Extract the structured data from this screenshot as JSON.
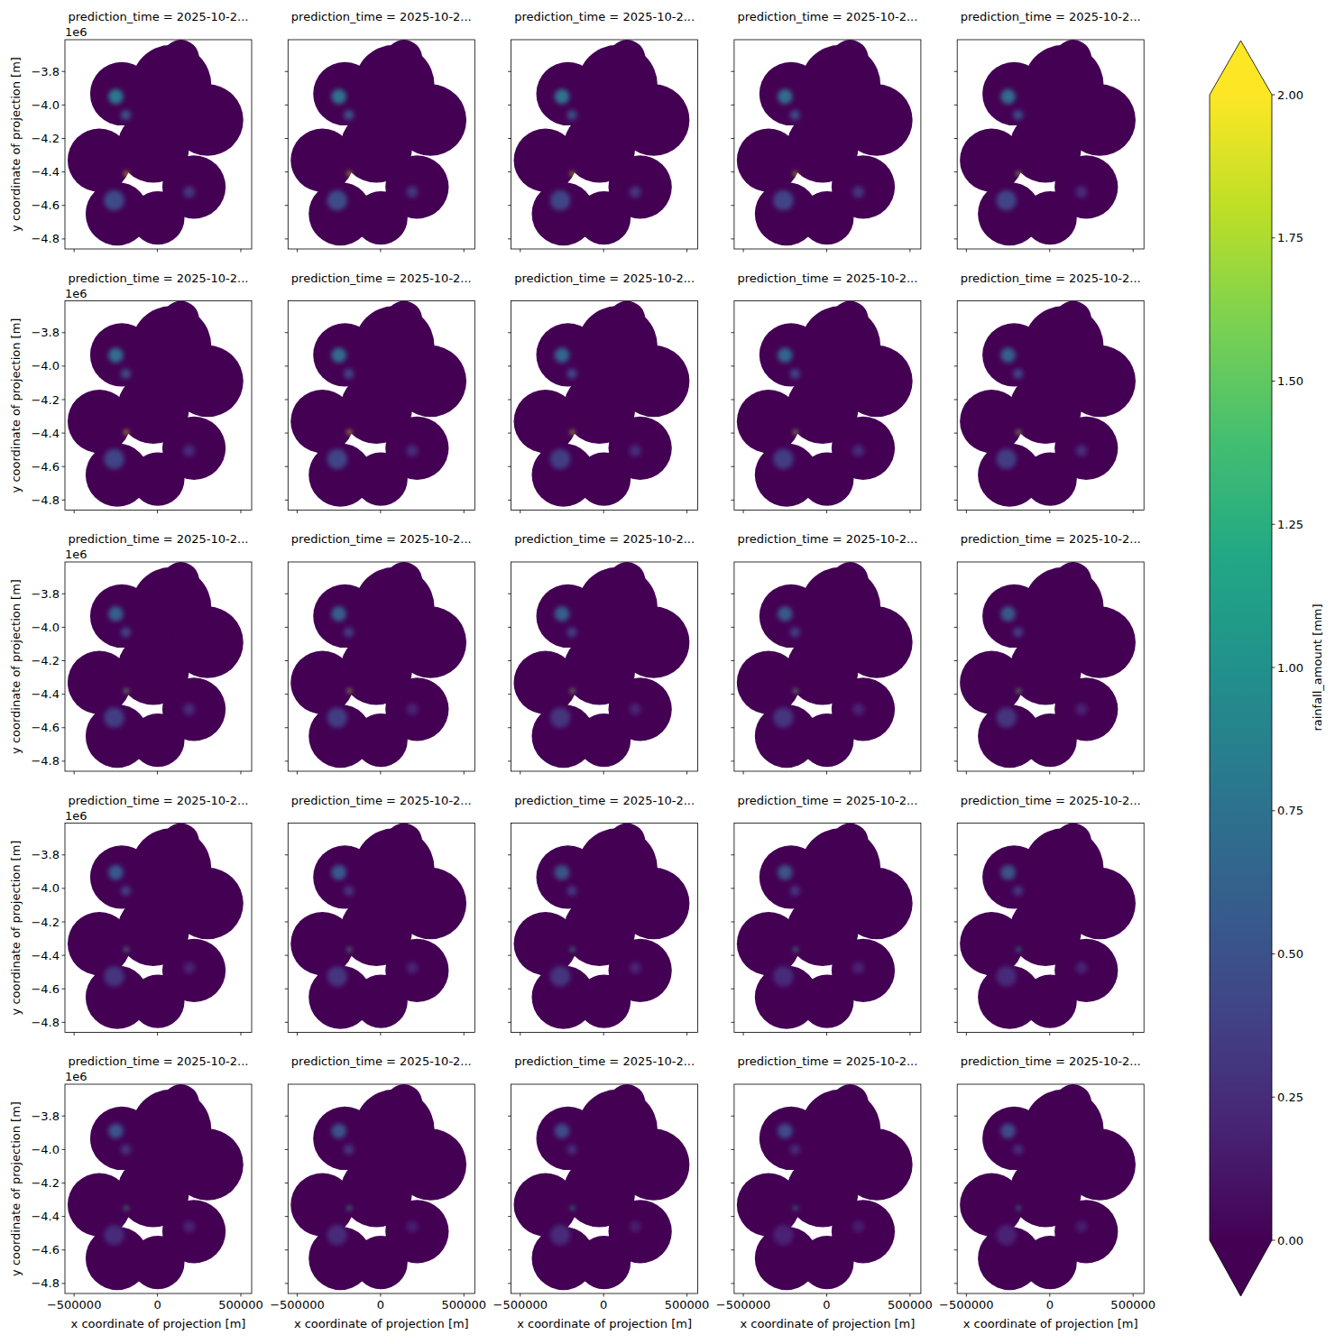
{
  "chart_data": {
    "type": "heatmap",
    "x_label": "x coordinate of projection [m]",
    "y_label": "y coordinate of projection [m]",
    "y_offset_label": "1e6",
    "xlim": [
      -555000,
      565000
    ],
    "ylim": [
      -4860000,
      -3610000
    ],
    "xticks": [
      {
        "value": -500000,
        "label": "−500000"
      },
      0,
      500000
    ],
    "yticks": [
      {
        "value": -4800000,
        "label": "−4.8"
      },
      {
        "value": -4600000,
        "label": "−4.6"
      },
      {
        "value": -4400000,
        "label": "−4.4"
      },
      {
        "value": -4200000,
        "label": "−4.2"
      },
      {
        "value": -4000000,
        "label": "−4.0"
      },
      {
        "value": -3800000,
        "label": "−3.8"
      }
    ],
    "colorbar": {
      "label": "rainfall_amount [mm]",
      "range": [
        0,
        2
      ],
      "ticks": [
        {
          "value": 0,
          "label": "0.00"
        },
        {
          "value": 0.25,
          "label": "0.25"
        },
        {
          "value": 0.5,
          "label": "0.50"
        },
        {
          "value": 0.75,
          "label": "0.75"
        },
        {
          "value": 1,
          "label": "1.00"
        },
        {
          "value": 1.25,
          "label": "1.25"
        },
        {
          "value": 1.5,
          "label": "1.50"
        },
        {
          "value": 1.75,
          "label": "1.75"
        },
        {
          "value": 2,
          "label": "2.00"
        }
      ]
    },
    "coverage": [
      [
        -214000,
        -3933000,
        190000
      ],
      [
        83000,
        -3880000,
        240000
      ],
      [
        300000,
        -4090000,
        215000
      ],
      [
        -349000,
        -4330000,
        190000
      ],
      [
        -25000,
        -4250000,
        215000
      ],
      [
        219000,
        -4490000,
        190000
      ],
      [
        -241000,
        -4650000,
        190000
      ],
      [
        2000,
        -4675000,
        160000
      ],
      [
        140000,
        -3720000,
        110000
      ]
    ],
    "panels": [
      {
        "title": "prediction_time = 2025-10-2...",
        "cells": [
          [
            -250000,
            -3950000,
            45000,
            0.8
          ],
          [
            -190000,
            -4060000,
            30000,
            0.5
          ],
          [
            -187000,
            -4410000,
            12000,
            2.0
          ],
          [
            -260000,
            -4570000,
            60000,
            0.45
          ],
          [
            190000,
            -4520000,
            35000,
            0.3
          ]
        ]
      },
      {
        "title": "prediction_time = 2025-10-2...",
        "cells": [
          [
            -250000,
            -3950000,
            45000,
            0.75
          ],
          [
            -190000,
            -4060000,
            30000,
            0.5
          ],
          [
            -187000,
            -4410000,
            12000,
            1.9
          ],
          [
            -260000,
            -4570000,
            60000,
            0.45
          ],
          [
            190000,
            -4520000,
            35000,
            0.3
          ]
        ]
      },
      {
        "title": "prediction_time = 2025-10-2...",
        "cells": [
          [
            -250000,
            -3950000,
            45000,
            0.75
          ],
          [
            -190000,
            -4060000,
            30000,
            0.45
          ],
          [
            -187000,
            -4410000,
            12000,
            1.8
          ],
          [
            -260000,
            -4570000,
            60000,
            0.4
          ],
          [
            190000,
            -4520000,
            35000,
            0.3
          ]
        ]
      },
      {
        "title": "prediction_time = 2025-10-2...",
        "cells": [
          [
            -250000,
            -3950000,
            45000,
            0.7
          ],
          [
            -190000,
            -4060000,
            30000,
            0.45
          ],
          [
            -187000,
            -4410000,
            12000,
            1.8
          ],
          [
            -260000,
            -4570000,
            60000,
            0.4
          ],
          [
            190000,
            -4520000,
            35000,
            0.3
          ]
        ]
      },
      {
        "title": "prediction_time = 2025-10-2...",
        "cells": [
          [
            -250000,
            -3950000,
            45000,
            0.7
          ],
          [
            -190000,
            -4060000,
            30000,
            0.45
          ],
          [
            -187000,
            -4410000,
            12000,
            1.7
          ],
          [
            -260000,
            -4570000,
            60000,
            0.4
          ],
          [
            190000,
            -4520000,
            35000,
            0.25
          ]
        ]
      },
      {
        "title": "prediction_time = 2025-10-2...",
        "cells": [
          [
            -250000,
            -3935000,
            45000,
            0.7
          ],
          [
            -190000,
            -4045000,
            30000,
            0.45
          ],
          [
            -187000,
            -4395000,
            12000,
            1.9
          ],
          [
            -260000,
            -4555000,
            60000,
            0.4
          ],
          [
            190000,
            -4505000,
            35000,
            0.25
          ]
        ]
      },
      {
        "title": "prediction_time = 2025-10-2...",
        "cells": [
          [
            -250000,
            -3935000,
            45000,
            0.7
          ],
          [
            -190000,
            -4045000,
            30000,
            0.4
          ],
          [
            -187000,
            -4395000,
            12000,
            1.9
          ],
          [
            -260000,
            -4555000,
            60000,
            0.4
          ],
          [
            190000,
            -4505000,
            35000,
            0.25
          ]
        ]
      },
      {
        "title": "prediction_time = 2025-10-2...",
        "cells": [
          [
            -250000,
            -3935000,
            45000,
            0.65
          ],
          [
            -190000,
            -4045000,
            30000,
            0.4
          ],
          [
            -187000,
            -4395000,
            12000,
            1.8
          ],
          [
            -260000,
            -4555000,
            60000,
            0.35
          ],
          [
            190000,
            -4505000,
            35000,
            0.25
          ]
        ]
      },
      {
        "title": "prediction_time = 2025-10-2...",
        "cells": [
          [
            -250000,
            -3935000,
            45000,
            0.65
          ],
          [
            -190000,
            -4045000,
            30000,
            0.4
          ],
          [
            -187000,
            -4395000,
            12000,
            1.7
          ],
          [
            -260000,
            -4555000,
            60000,
            0.35
          ],
          [
            190000,
            -4505000,
            35000,
            0.25
          ]
        ]
      },
      {
        "title": "prediction_time = 2025-10-2...",
        "cells": [
          [
            -250000,
            -3935000,
            45000,
            0.6
          ],
          [
            -190000,
            -4045000,
            30000,
            0.4
          ],
          [
            -187000,
            -4395000,
            12000,
            1.7
          ],
          [
            -260000,
            -4555000,
            60000,
            0.35
          ],
          [
            190000,
            -4505000,
            35000,
            0.25
          ]
        ]
      },
      {
        "title": "prediction_time = 2025-10-2...",
        "cells": [
          [
            -250000,
            -3920000,
            45000,
            0.6
          ],
          [
            -190000,
            -4030000,
            30000,
            0.4
          ],
          [
            -187000,
            -4380000,
            12000,
            1.6
          ],
          [
            -260000,
            -4540000,
            60000,
            0.35
          ],
          [
            190000,
            -4490000,
            35000,
            0.25
          ]
        ]
      },
      {
        "title": "prediction_time = 2025-10-2...",
        "cells": [
          [
            -250000,
            -3920000,
            45000,
            0.6
          ],
          [
            -190000,
            -4030000,
            30000,
            0.35
          ],
          [
            -187000,
            -4380000,
            12000,
            1.7
          ],
          [
            -260000,
            -4540000,
            60000,
            0.35
          ],
          [
            190000,
            -4490000,
            35000,
            0.2
          ]
        ]
      },
      {
        "title": "prediction_time = 2025-10-2...",
        "cells": [
          [
            -250000,
            -3920000,
            45000,
            0.6
          ],
          [
            -190000,
            -4030000,
            30000,
            0.35
          ],
          [
            -187000,
            -4380000,
            12000,
            1.6
          ],
          [
            -260000,
            -4540000,
            60000,
            0.3
          ],
          [
            190000,
            -4490000,
            35000,
            0.2
          ]
        ]
      },
      {
        "title": "prediction_time = 2025-10-2...",
        "cells": [
          [
            -250000,
            -3920000,
            45000,
            0.55
          ],
          [
            -190000,
            -4030000,
            30000,
            0.35
          ],
          [
            -187000,
            -4380000,
            12000,
            1.5
          ],
          [
            -260000,
            -4540000,
            60000,
            0.3
          ],
          [
            190000,
            -4490000,
            35000,
            0.2
          ]
        ]
      },
      {
        "title": "prediction_time = 2025-10-2...",
        "cells": [
          [
            -250000,
            -3920000,
            45000,
            0.55
          ],
          [
            -190000,
            -4030000,
            30000,
            0.35
          ],
          [
            -187000,
            -4380000,
            12000,
            1.5
          ],
          [
            -260000,
            -4540000,
            60000,
            0.3
          ],
          [
            190000,
            -4490000,
            35000,
            0.2
          ]
        ]
      },
      {
        "title": "prediction_time = 2025-10-2...",
        "cells": [
          [
            -250000,
            -3905000,
            45000,
            0.55
          ],
          [
            -190000,
            -4015000,
            30000,
            0.35
          ],
          [
            -187000,
            -4365000,
            12000,
            1.4
          ],
          [
            -260000,
            -4525000,
            60000,
            0.3
          ],
          [
            190000,
            -4475000,
            35000,
            0.2
          ]
        ]
      },
      {
        "title": "prediction_time = 2025-10-2...",
        "cells": [
          [
            -250000,
            -3905000,
            45000,
            0.55
          ],
          [
            -190000,
            -4015000,
            30000,
            0.3
          ],
          [
            -187000,
            -4365000,
            12000,
            1.4
          ],
          [
            -260000,
            -4525000,
            60000,
            0.3
          ],
          [
            190000,
            -4475000,
            35000,
            0.2
          ]
        ]
      },
      {
        "title": "prediction_time = 2025-10-2...",
        "cells": [
          [
            -250000,
            -3905000,
            45000,
            0.5
          ],
          [
            -190000,
            -4015000,
            30000,
            0.3
          ],
          [
            -187000,
            -4365000,
            12000,
            1.3
          ],
          [
            -260000,
            -4525000,
            60000,
            0.3
          ],
          [
            190000,
            -4475000,
            35000,
            0.2
          ]
        ]
      },
      {
        "title": "prediction_time = 2025-10-2...",
        "cells": [
          [
            -250000,
            -3905000,
            45000,
            0.5
          ],
          [
            -190000,
            -4015000,
            30000,
            0.3
          ],
          [
            -187000,
            -4365000,
            12000,
            1.3
          ],
          [
            -260000,
            -4525000,
            60000,
            0.25
          ],
          [
            190000,
            -4475000,
            35000,
            0.2
          ]
        ]
      },
      {
        "title": "prediction_time = 2025-10-2...",
        "cells": [
          [
            -250000,
            -3905000,
            45000,
            0.5
          ],
          [
            -190000,
            -4015000,
            30000,
            0.3
          ],
          [
            -187000,
            -4365000,
            12000,
            1.2
          ],
          [
            -260000,
            -4525000,
            60000,
            0.25
          ],
          [
            190000,
            -4475000,
            35000,
            0.2
          ]
        ]
      },
      {
        "title": "prediction_time = 2025-10-2...",
        "cells": [
          [
            -250000,
            -3890000,
            45000,
            0.5
          ],
          [
            -190000,
            -4000000,
            30000,
            0.3
          ],
          [
            -187000,
            -4350000,
            12000,
            1.3
          ],
          [
            -260000,
            -4510000,
            60000,
            0.25
          ],
          [
            190000,
            -4460000,
            35000,
            0.2
          ]
        ]
      },
      {
        "title": "prediction_time = 2025-10-2...",
        "cells": [
          [
            -250000,
            -3890000,
            45000,
            0.5
          ],
          [
            -190000,
            -4000000,
            30000,
            0.3
          ],
          [
            -187000,
            -4350000,
            12000,
            1.3
          ],
          [
            -260000,
            -4510000,
            60000,
            0.25
          ],
          [
            190000,
            -4460000,
            35000,
            0.15
          ]
        ]
      },
      {
        "title": "prediction_time = 2025-10-2...",
        "cells": [
          [
            -250000,
            -3890000,
            45000,
            0.45
          ],
          [
            -190000,
            -4000000,
            30000,
            0.25
          ],
          [
            -187000,
            -4350000,
            12000,
            1.2
          ],
          [
            -260000,
            -4510000,
            60000,
            0.25
          ],
          [
            190000,
            -4460000,
            35000,
            0.15
          ]
        ]
      },
      {
        "title": "prediction_time = 2025-10-2...",
        "cells": [
          [
            -250000,
            -3890000,
            45000,
            0.45
          ],
          [
            -190000,
            -4000000,
            30000,
            0.25
          ],
          [
            -187000,
            -4350000,
            12000,
            1.2
          ],
          [
            -260000,
            -4510000,
            60000,
            0.2
          ],
          [
            190000,
            -4460000,
            35000,
            0.15
          ]
        ]
      },
      {
        "title": "prediction_time = 2025-10-2...",
        "cells": [
          [
            -250000,
            -3890000,
            45000,
            0.45
          ],
          [
            -190000,
            -4000000,
            30000,
            0.25
          ],
          [
            -187000,
            -4350000,
            12000,
            1.1
          ],
          [
            -260000,
            -4510000,
            60000,
            0.2
          ],
          [
            190000,
            -4460000,
            35000,
            0.15
          ]
        ]
      }
    ]
  }
}
